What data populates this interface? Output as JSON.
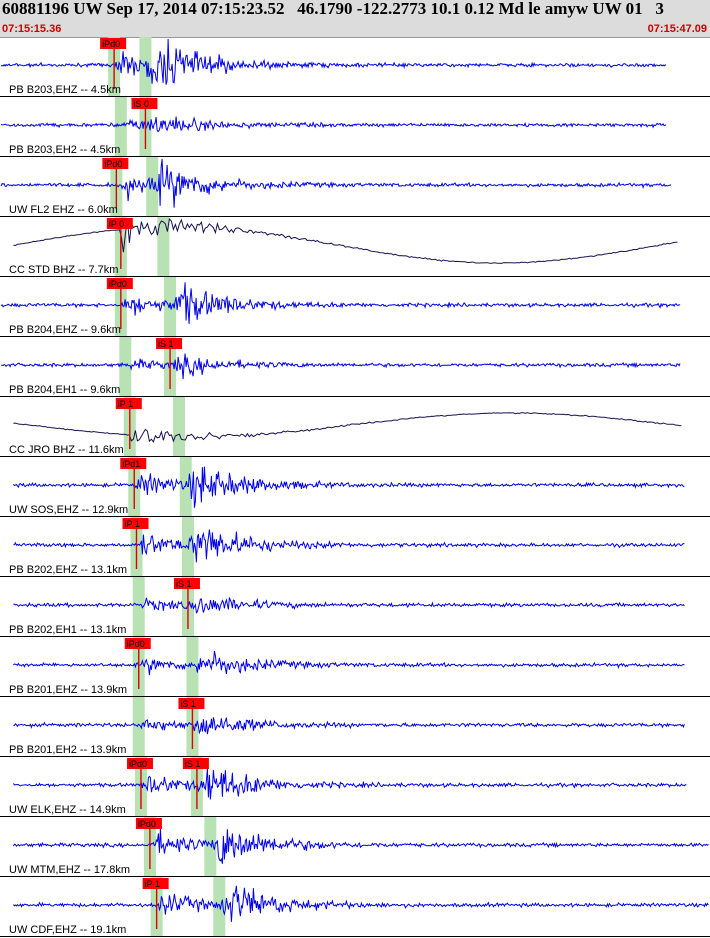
{
  "header": {
    "title": "60881196 UW Sep 17, 2014 07:15:23.52   46.1790 -122.2773 10.1 0.12 Md le amyw UW 01   3",
    "start_time": "07:15:15.36",
    "end_time": "07:15:47.09"
  },
  "colors": {
    "trace": "#0000ee",
    "trace_broadband": "#1a1050",
    "pick_box": "#ff0000",
    "pick_line": "#dd0000",
    "window": "#b8e2b4",
    "header_bg": "#dcdcdc",
    "time_text": "#cc0000"
  },
  "chart_data": {
    "type": "line",
    "title": "60881196 UW Sep 17, 2014 07:15:23.52   46.1790 -122.2773 10.1 0.12 Md le amyw UW 01   3",
    "x_range": [
      "07:15:15.36",
      "07:15:47.09"
    ],
    "x_range_seconds": [
      0,
      31.73
    ],
    "grid": false,
    "traces": [
      {
        "label": "PB B203,EHZ -- 4.5km",
        "distance_km": 4.5,
        "broadband": false,
        "amp": 1.0,
        "onset_s": 5.1,
        "s_s": 6.5,
        "end_s": 29.8,
        "picks": [
          {
            "label": "iPd0",
            "t_s": 5.1
          }
        ]
      },
      {
        "label": "PB B203,EH2 -- 4.5km",
        "distance_km": 4.5,
        "broadband": false,
        "amp": 0.35,
        "onset_s": 5.4,
        "s_s": 6.5,
        "end_s": 29.8,
        "picks": [
          {
            "label": "iS 0",
            "t_s": 6.5
          }
        ]
      },
      {
        "label": "UW FL2 EHZ -- 6.0km",
        "distance_km": 6.0,
        "broadband": false,
        "amp": 0.8,
        "onset_s": 5.2,
        "s_s": 6.8,
        "end_s": 30.0,
        "picks": [
          {
            "label": "iPd0",
            "t_s": 5.2
          }
        ]
      },
      {
        "label": "CC STD BHZ -- 7.7km",
        "distance_km": 7.7,
        "broadband": true,
        "amp": 0.9,
        "onset_s": 5.4,
        "s_s": 7.3,
        "end_s": 30.3,
        "picks": [
          {
            "label": "iP 0",
            "t_s": 5.4
          }
        ]
      },
      {
        "label": "PB B204,EHZ -- 9.6km",
        "distance_km": 9.6,
        "broadband": false,
        "amp": 0.8,
        "onset_s": 5.4,
        "s_s": 7.6,
        "end_s": 30.4,
        "picks": [
          {
            "label": "iPd0",
            "t_s": 5.4
          }
        ]
      },
      {
        "label": "PB B204,EH1 -- 9.6km",
        "distance_km": 9.6,
        "broadband": false,
        "amp": 0.35,
        "onset_s": 5.6,
        "s_s": 7.6,
        "end_s": 30.4,
        "picks": [
          {
            "label": "iS 1",
            "t_s": 7.6
          }
        ]
      },
      {
        "label": "CC JRO BHZ -- 11.6km",
        "distance_km": 11.6,
        "broadband": true,
        "amp": 0.6,
        "onset_s": 5.8,
        "s_s": 8.0,
        "end_s": 30.5,
        "picks": [
          {
            "label": "iP 1",
            "t_s": 5.8
          }
        ]
      },
      {
        "label": "UW SOS,EHZ -- 12.9km",
        "distance_km": 12.9,
        "broadband": false,
        "amp": 0.85,
        "onset_s": 6.0,
        "s_s": 8.3,
        "end_s": 30.6,
        "picks": [
          {
            "label": "iPd1",
            "t_s": 6.0
          }
        ]
      },
      {
        "label": "PB B202,EHZ -- 13.1km",
        "distance_km": 13.1,
        "broadband": false,
        "amp": 0.85,
        "onset_s": 6.1,
        "s_s": 8.4,
        "end_s": 30.6,
        "picks": [
          {
            "label": "iP 1",
            "t_s": 6.1
          }
        ]
      },
      {
        "label": "PB B202,EH1 -- 13.1km",
        "distance_km": 13.1,
        "broadband": false,
        "amp": 0.4,
        "onset_s": 6.2,
        "s_s": 8.4,
        "end_s": 30.6,
        "picks": [
          {
            "label": "iS 1",
            "t_s": 8.4
          }
        ]
      },
      {
        "label": "PB B201,EHZ -- 13.9km",
        "distance_km": 13.9,
        "broadband": false,
        "amp": 0.55,
        "onset_s": 6.2,
        "s_s": 8.6,
        "end_s": 30.6,
        "picks": [
          {
            "label": "iPd0",
            "t_s": 6.2
          }
        ]
      },
      {
        "label": "PB B201,EH2 -- 13.9km",
        "distance_km": 13.9,
        "broadband": false,
        "amp": 0.5,
        "onset_s": 6.2,
        "s_s": 8.6,
        "end_s": 30.6,
        "picks": [
          {
            "label": "iS 1",
            "t_s": 8.6
          }
        ]
      },
      {
        "label": "UW ELK,EHZ -- 14.9km",
        "distance_km": 14.9,
        "broadband": false,
        "amp": 0.8,
        "onset_s": 6.3,
        "s_s": 8.8,
        "end_s": 30.7,
        "picks": [
          {
            "label": "iPd0",
            "t_s": 6.3
          },
          {
            "label": "iS 1",
            "t_s": 8.8
          }
        ]
      },
      {
        "label": "UW MTM,EHZ -- 17.8km",
        "distance_km": 17.8,
        "broadband": false,
        "amp": 0.9,
        "onset_s": 6.7,
        "s_s": 9.4,
        "end_s": 31.7,
        "picks": [
          {
            "label": "iPd0",
            "t_s": 6.7
          }
        ]
      },
      {
        "label": "UW CDF,EHZ -- 19.1km",
        "distance_km": 19.1,
        "broadband": false,
        "amp": 0.85,
        "onset_s": 7.0,
        "s_s": 9.8,
        "end_s": 31.7,
        "picks": [
          {
            "label": "iP 1",
            "t_s": 7.0
          }
        ]
      }
    ]
  }
}
